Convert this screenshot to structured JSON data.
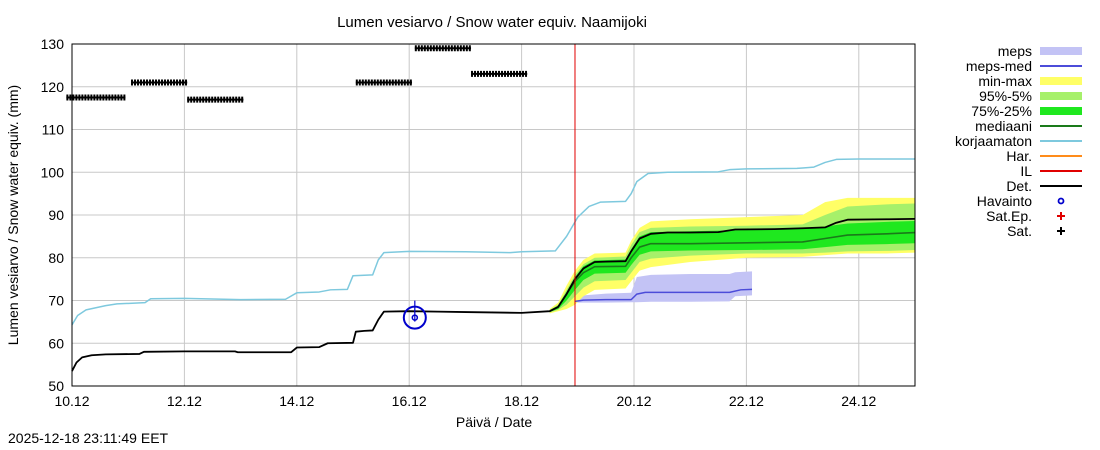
{
  "chart_data": {
    "type": "line",
    "title": "Lumen vesiarvo / Snow water equiv.  Naamijoki",
    "xlabel": "Päivä / Date",
    "ylabel": "Lumen vesiarvo / Snow water equiv. (mm)",
    "xlim": [
      10.0,
      25.0
    ],
    "ylim": [
      50,
      130
    ],
    "xticks": [
      {
        "v": 10,
        "label": "10.12"
      },
      {
        "v": 12,
        "label": "12.12"
      },
      {
        "v": 14,
        "label": "14.12"
      },
      {
        "v": 16,
        "label": "16.12"
      },
      {
        "v": 18,
        "label": "18.12"
      },
      {
        "v": 20,
        "label": "20.12"
      },
      {
        "v": 22,
        "label": "22.12"
      },
      {
        "v": 24,
        "label": "24.12"
      }
    ],
    "yticks": [
      50,
      60,
      70,
      80,
      90,
      100,
      110,
      120,
      130
    ],
    "forecast_start_day": 18.95,
    "legend": [
      {
        "key": "meps",
        "label": "meps",
        "kind": "box",
        "color": "#c3c3f5"
      },
      {
        "key": "meps_med",
        "label": "meps-med",
        "kind": "line",
        "color": "#4c4cd9"
      },
      {
        "key": "minmax",
        "label": "min-max",
        "kind": "box",
        "color": "#ffff66"
      },
      {
        "key": "p95_5",
        "label": "95%-5%",
        "kind": "box",
        "color": "#a6f06a"
      },
      {
        "key": "p75_25",
        "label": "75%-25%",
        "kind": "box",
        "color": "#1fe81f"
      },
      {
        "key": "median",
        "label": "mediaani",
        "kind": "line",
        "color": "#1a7a1a"
      },
      {
        "key": "uncorrected",
        "label": "korjaamaton",
        "kind": "line",
        "color": "#7ec9de"
      },
      {
        "key": "har",
        "label": "Har.",
        "kind": "line",
        "color": "#ff8c1a"
      },
      {
        "key": "il",
        "label": "IL",
        "kind": "line",
        "color": "#e00000"
      },
      {
        "key": "det",
        "label": "Det.",
        "kind": "line",
        "color": "#000000"
      },
      {
        "key": "havainto",
        "label": "Havainto",
        "kind": "circle",
        "color": "#0000cc"
      },
      {
        "key": "satep",
        "label": "Sat.Ep.",
        "kind": "plus",
        "color": "#e00000"
      },
      {
        "key": "sat",
        "label": "Sat.",
        "kind": "plus",
        "color": "#000000"
      }
    ],
    "series": {
      "det": [
        [
          10.0,
          53.5
        ],
        [
          10.08,
          55.5
        ],
        [
          10.18,
          56.7
        ],
        [
          10.35,
          57.2
        ],
        [
          10.6,
          57.4
        ],
        [
          11.2,
          57.5
        ],
        [
          11.28,
          58.0
        ],
        [
          12.0,
          58.1
        ],
        [
          12.9,
          58.1
        ],
        [
          12.95,
          57.9
        ],
        [
          13.9,
          57.9
        ],
        [
          14.0,
          59.0
        ],
        [
          14.4,
          59.1
        ],
        [
          14.55,
          60.0
        ],
        [
          15.0,
          60.1
        ],
        [
          15.05,
          62.7
        ],
        [
          15.2,
          62.9
        ],
        [
          15.35,
          63.0
        ],
        [
          15.45,
          65.5
        ],
        [
          15.55,
          67.4
        ],
        [
          16.0,
          67.5
        ],
        [
          16.5,
          67.4
        ],
        [
          17.0,
          67.3
        ],
        [
          18.0,
          67.1
        ],
        [
          18.5,
          67.5
        ],
        [
          18.65,
          68.5
        ],
        [
          18.8,
          71.5
        ],
        [
          18.95,
          75.0
        ],
        [
          19.1,
          77.5
        ],
        [
          19.3,
          79.0
        ],
        [
          19.5,
          79.1
        ],
        [
          19.85,
          79.2
        ],
        [
          19.95,
          81.5
        ],
        [
          20.1,
          84.5
        ],
        [
          20.3,
          85.6
        ],
        [
          20.6,
          85.9
        ],
        [
          21.0,
          85.9
        ],
        [
          21.5,
          86.0
        ],
        [
          21.8,
          86.6
        ],
        [
          22.5,
          86.7
        ],
        [
          23.0,
          86.9
        ],
        [
          23.4,
          87.1
        ],
        [
          23.6,
          88.2
        ],
        [
          23.8,
          88.9
        ],
        [
          24.5,
          89.0
        ],
        [
          25.0,
          89.1
        ]
      ],
      "uncorrected": [
        [
          10.0,
          64.3
        ],
        [
          10.1,
          66.5
        ],
        [
          10.25,
          67.8
        ],
        [
          10.6,
          68.8
        ],
        [
          10.8,
          69.2
        ],
        [
          11.3,
          69.5
        ],
        [
          11.4,
          70.4
        ],
        [
          12.0,
          70.5
        ],
        [
          13.0,
          70.2
        ],
        [
          13.8,
          70.3
        ],
        [
          14.0,
          71.8
        ],
        [
          14.4,
          72.0
        ],
        [
          14.6,
          72.5
        ],
        [
          14.9,
          72.6
        ],
        [
          15.0,
          75.8
        ],
        [
          15.35,
          76.0
        ],
        [
          15.45,
          79.5
        ],
        [
          15.55,
          81.2
        ],
        [
          16.0,
          81.5
        ],
        [
          17.0,
          81.4
        ],
        [
          17.8,
          81.2
        ],
        [
          18.0,
          81.4
        ],
        [
          18.6,
          81.6
        ],
        [
          18.8,
          85.0
        ],
        [
          19.0,
          89.5
        ],
        [
          19.2,
          92.0
        ],
        [
          19.4,
          93.0
        ],
        [
          19.85,
          93.2
        ],
        [
          19.95,
          95.0
        ],
        [
          20.05,
          97.8
        ],
        [
          20.25,
          99.7
        ],
        [
          20.6,
          100.0
        ],
        [
          21.5,
          100.1
        ],
        [
          21.7,
          100.6
        ],
        [
          22.0,
          100.8
        ],
        [
          22.9,
          100.9
        ],
        [
          23.0,
          101.0
        ],
        [
          23.2,
          101.2
        ],
        [
          23.4,
          102.3
        ],
        [
          23.6,
          103.0
        ],
        [
          24.0,
          103.1
        ],
        [
          25.0,
          103.1
        ]
      ],
      "median": [
        [
          18.5,
          67.5
        ],
        [
          18.65,
          68.5
        ],
        [
          18.8,
          71.5
        ],
        [
          18.95,
          74.5
        ],
        [
          19.1,
          76.5
        ],
        [
          19.3,
          77.9
        ],
        [
          19.85,
          78.0
        ],
        [
          19.95,
          80.0
        ],
        [
          20.1,
          82.5
        ],
        [
          20.3,
          83.3
        ],
        [
          21.0,
          83.3
        ],
        [
          22.0,
          83.5
        ],
        [
          23.0,
          83.7
        ],
        [
          23.4,
          84.5
        ],
        [
          23.8,
          85.3
        ],
        [
          24.5,
          85.6
        ],
        [
          25.0,
          85.9
        ]
      ],
      "meps_med": [
        [
          18.95,
          69.8
        ],
        [
          19.1,
          70.1
        ],
        [
          19.5,
          70.2
        ],
        [
          19.95,
          70.2
        ],
        [
          20.05,
          71.5
        ],
        [
          20.2,
          71.9
        ],
        [
          21.0,
          71.9
        ],
        [
          21.7,
          71.9
        ],
        [
          21.9,
          72.5
        ],
        [
          22.1,
          72.6
        ]
      ],
      "bands": {
        "meps": {
          "color": "#c3c3f5",
          "x": [
            18.95,
            19.1,
            19.5,
            19.95,
            20.05,
            20.3,
            21.0,
            21.7,
            21.8,
            22.1
          ],
          "lo": [
            69.5,
            69.5,
            69.5,
            69.6,
            69.6,
            69.7,
            69.7,
            69.8,
            71.0,
            71.2
          ],
          "hi": [
            70.0,
            71.2,
            71.6,
            71.8,
            75.5,
            76.0,
            76.2,
            76.2,
            76.6,
            76.8
          ]
        },
        "minmax": {
          "color": "#ffff66",
          "x": [
            18.5,
            18.65,
            18.8,
            18.95,
            19.1,
            19.3,
            19.85,
            19.95,
            20.1,
            20.3,
            21.0,
            22.0,
            23.0,
            23.4,
            23.8,
            24.5,
            25.0
          ],
          "lo": [
            67.0,
            67.5,
            68.0,
            69.0,
            71.0,
            72.5,
            72.8,
            74.5,
            77.0,
            77.8,
            79.0,
            80.0,
            80.2,
            80.6,
            81.0,
            81.0,
            81.2
          ],
          "hi": [
            68.0,
            69.5,
            73.5,
            77.0,
            79.5,
            81.0,
            81.2,
            84.0,
            87.0,
            88.5,
            89.0,
            89.5,
            90.0,
            93.0,
            94.0,
            94.0,
            94.0
          ]
        },
        "p95_5": {
          "color": "#a6f06a",
          "x": [
            18.5,
            18.65,
            18.8,
            18.95,
            19.1,
            19.3,
            19.85,
            19.95,
            20.1,
            20.3,
            21.0,
            22.0,
            23.0,
            23.4,
            23.8,
            24.5,
            25.0
          ],
          "lo": [
            67.2,
            67.8,
            69.0,
            71.0,
            73.0,
            74.5,
            74.8,
            76.5,
            79.0,
            79.8,
            80.5,
            81.0,
            81.0,
            81.2,
            81.5,
            81.6,
            81.8
          ],
          "hi": [
            67.8,
            69.0,
            72.5,
            76.0,
            78.5,
            80.0,
            80.3,
            83.0,
            86.0,
            87.0,
            87.3,
            87.5,
            87.8,
            90.0,
            92.0,
            92.5,
            92.7
          ]
        },
        "p75_25": {
          "color": "#1fe81f",
          "x": [
            18.5,
            18.65,
            18.8,
            18.95,
            19.1,
            19.3,
            19.85,
            19.95,
            20.1,
            20.3,
            21.0,
            22.0,
            23.0,
            23.4,
            23.8,
            24.5,
            25.0
          ],
          "lo": [
            67.3,
            68.0,
            70.0,
            72.5,
            74.8,
            76.3,
            76.5,
            78.3,
            80.7,
            81.5,
            81.7,
            81.8,
            82.0,
            82.5,
            83.0,
            83.2,
            83.4
          ],
          "hi": [
            67.7,
            68.8,
            72.0,
            75.5,
            78.0,
            79.4,
            79.6,
            82.0,
            85.0,
            86.0,
            86.2,
            86.5,
            86.8,
            87.3,
            88.0,
            88.4,
            88.6
          ]
        }
      },
      "sat": [
        {
          "x0": 9.9,
          "x1": 10.95,
          "y": 117.5
        },
        {
          "x0": 11.05,
          "x1": 12.05,
          "y": 121.0
        },
        {
          "x0": 12.05,
          "x1": 13.05,
          "y": 117.0
        },
        {
          "x0": 15.05,
          "x1": 16.05,
          "y": 121.0
        },
        {
          "x0": 16.1,
          "x1": 17.1,
          "y": 129.0
        },
        {
          "x0": 17.1,
          "x1": 18.1,
          "y": 123.0
        }
      ],
      "havainto": [
        {
          "x": 16.1,
          "y": 66.0
        }
      ]
    }
  },
  "timestamp": "2025-12-18 23:11:49 EET"
}
